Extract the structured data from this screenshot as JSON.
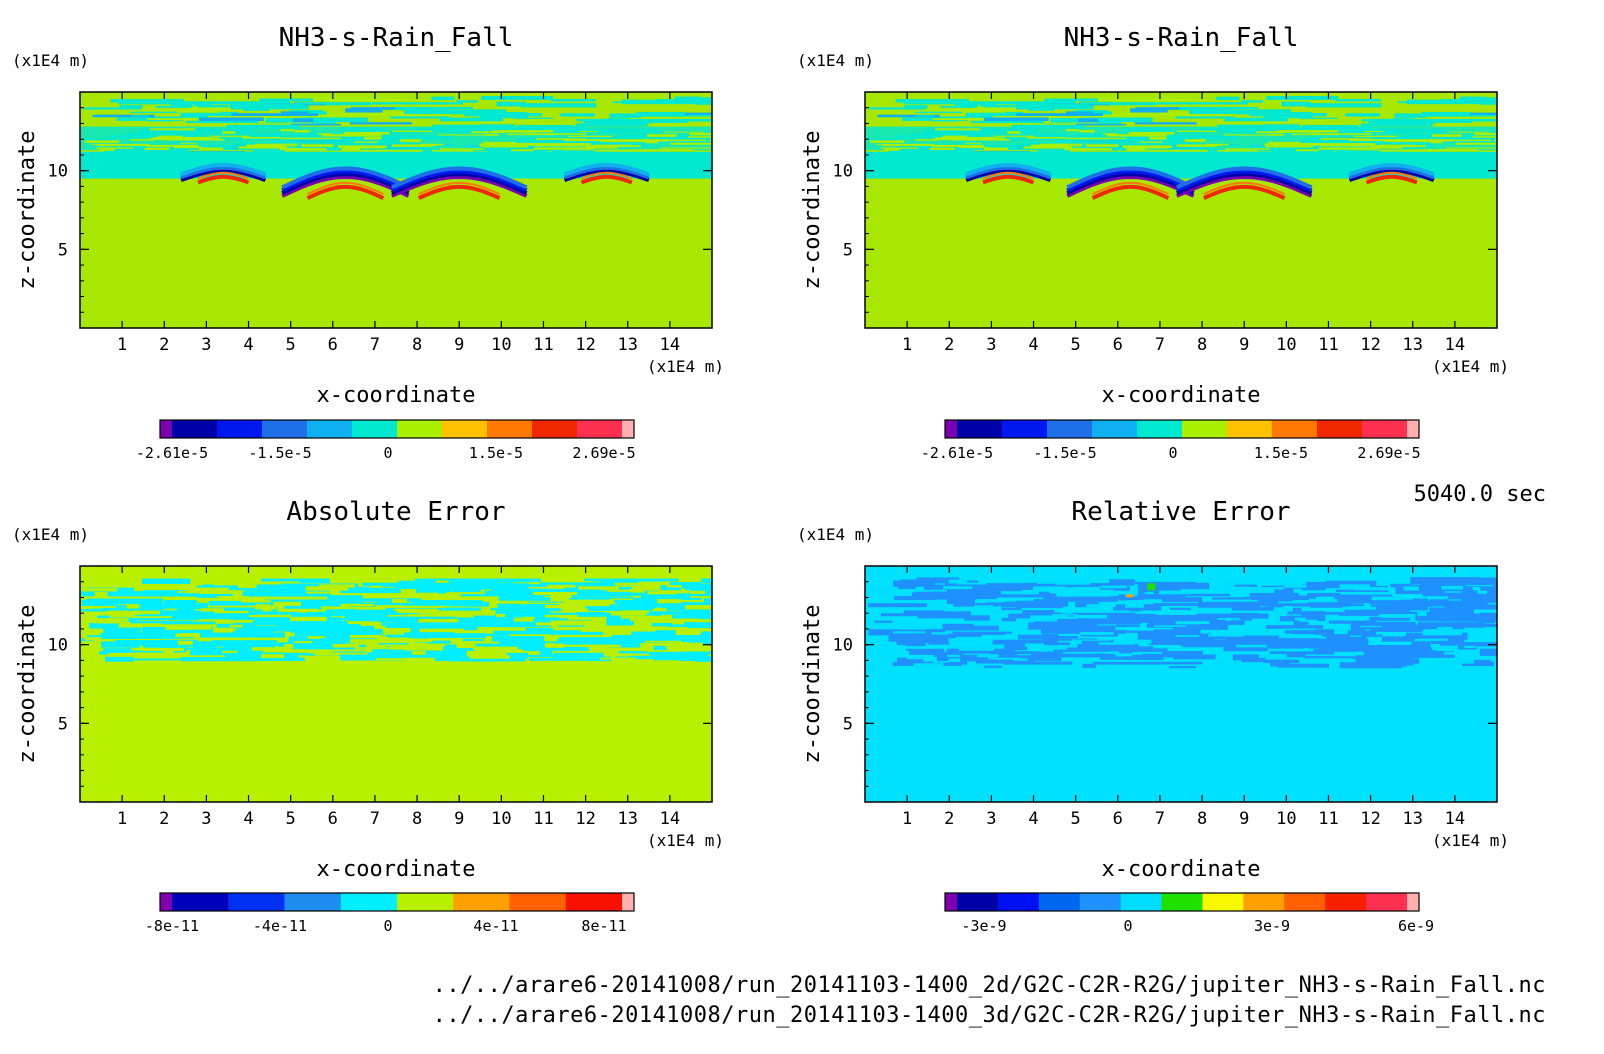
{
  "time_label": "5040.0 sec",
  "footer_lines": [
    "../../arare6-20141008/run_20141103-1400_2d/G2C-C2R-R2G/jupiter_NH3-s-Rain_Fall.nc",
    "../../arare6-20141008/run_20141103-1400_3d/G2C-C2R-R2G/jupiter_NH3-s-Rain_Fall.nc"
  ],
  "chart_data": [
    {
      "type": "heatmap",
      "title": "NH3-s-Rain_Fall",
      "xlabel": "x-coordinate",
      "ylabel": "z-coordinate",
      "x_unit": "(x1E4 m)",
      "y_unit": "(x1E4 m)",
      "xlim": [
        0,
        15
      ],
      "ylim": [
        0,
        15
      ],
      "xticks": [
        "1",
        "2",
        "3",
        "4",
        "5",
        "6",
        "7",
        "8",
        "9",
        "10",
        "11",
        "12",
        "13",
        "14"
      ],
      "yticks": [
        "5",
        "10"
      ],
      "colorbar": {
        "colors": [
          "#7a00b0",
          "#0000a8",
          "#0018f0",
          "#1e6fe8",
          "#10aff0",
          "#00e8d0",
          "#aaee00",
          "#ffc000",
          "#ff7800",
          "#f02800",
          "#ff3050",
          "#ffb0b0"
        ],
        "tick_labels": [
          "-2.61e-5",
          "-1.5e-5",
          "0",
          "1.5e-5",
          "2.69e-5"
        ]
      },
      "background_color": "#a8e800",
      "field": "rain_fall"
    },
    {
      "type": "heatmap",
      "title": "NH3-s-Rain_Fall",
      "xlabel": "x-coordinate",
      "ylabel": "z-coordinate",
      "x_unit": "(x1E4 m)",
      "y_unit": "(x1E4 m)",
      "xlim": [
        0,
        15
      ],
      "ylim": [
        0,
        15
      ],
      "xticks": [
        "1",
        "2",
        "3",
        "4",
        "5",
        "6",
        "7",
        "8",
        "9",
        "10",
        "11",
        "12",
        "13",
        "14"
      ],
      "yticks": [
        "5",
        "10"
      ],
      "colorbar": {
        "colors": [
          "#7a00b0",
          "#0000a8",
          "#0018f0",
          "#1e6fe8",
          "#10aff0",
          "#00e8d0",
          "#aaee00",
          "#ffc000",
          "#ff7800",
          "#f02800",
          "#ff3050",
          "#ffb0b0"
        ],
        "tick_labels": [
          "-2.61e-5",
          "-1.5e-5",
          "0",
          "1.5e-5",
          "2.69e-5"
        ]
      },
      "background_color": "#a8e800",
      "field": "rain_fall"
    },
    {
      "type": "heatmap",
      "title": "Absolute Error",
      "xlabel": "x-coordinate",
      "ylabel": "z-coordinate",
      "x_unit": "(x1E4 m)",
      "y_unit": "(x1E4 m)",
      "xlim": [
        0,
        15
      ],
      "ylim": [
        0,
        15
      ],
      "xticks": [
        "1",
        "2",
        "3",
        "4",
        "5",
        "6",
        "7",
        "8",
        "9",
        "10",
        "11",
        "12",
        "13",
        "14"
      ],
      "yticks": [
        "5",
        "10"
      ],
      "colorbar": {
        "colors": [
          "#8000b0",
          "#0000b8",
          "#0030f0",
          "#1e8cf0",
          "#00eeff",
          "#b8f000",
          "#ffa000",
          "#ff6000",
          "#f81000",
          "#ffb0b0"
        ],
        "tick_labels": [
          "-8e-11",
          "-4e-11",
          "0",
          "4e-11",
          "8e-11"
        ]
      },
      "background_color": "#b8f000",
      "field": "abs_error"
    },
    {
      "type": "heatmap",
      "title": "Relative Error",
      "xlabel": "x-coordinate",
      "ylabel": "z-coordinate",
      "x_unit": "(x1E4 m)",
      "y_unit": "(x1E4 m)",
      "xlim": [
        0,
        15
      ],
      "ylim": [
        0,
        15
      ],
      "xticks": [
        "1",
        "2",
        "3",
        "4",
        "5",
        "6",
        "7",
        "8",
        "9",
        "10",
        "11",
        "12",
        "13",
        "14"
      ],
      "yticks": [
        "5",
        "10"
      ],
      "colorbar": {
        "colors": [
          "#8000b0",
          "#0000a8",
          "#0010f0",
          "#0068f0",
          "#1e90ff",
          "#00ddff",
          "#20e000",
          "#f8f800",
          "#ffa000",
          "#ff6000",
          "#f82000",
          "#ff3050",
          "#ffb0b0"
        ],
        "tick_labels": [
          "-3e-9",
          "0",
          "3e-9",
          "6e-9"
        ]
      },
      "background_color": "#00e0ff",
      "field": "rel_error"
    }
  ]
}
